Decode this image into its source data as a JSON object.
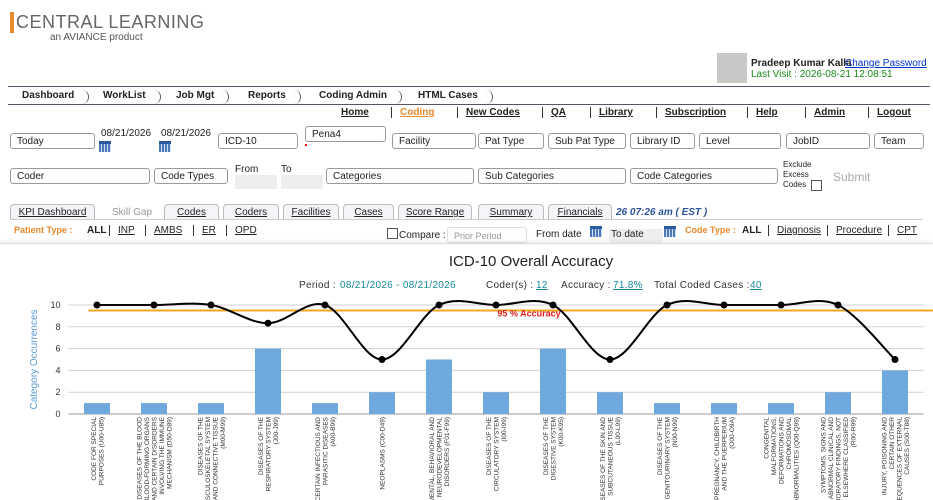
{
  "header": {
    "brand": "CENTRAL LEARNING",
    "tagline": "an AVIANCE product",
    "user": "Pradeep Kumar Kalla",
    "change_password": "Change Password",
    "last_visit": "Last Visit : 2026-08-21 12:08:51"
  },
  "nav": [
    "Dashboard",
    "WorkList",
    "Job Mgt",
    "Reports",
    "Coding Admin",
    "HTML Cases"
  ],
  "menu": [
    "Home",
    "Coding",
    "New Codes",
    "QA",
    "Library",
    "Subscription",
    "Help",
    "Admin",
    "Logout"
  ],
  "filters": {
    "row1": [
      "Today",
      "08/21/2026",
      "08/21/2026",
      "ICD-10",
      "Pena4",
      "Facility",
      "Pat Type",
      "Sub Pat Type",
      "Library ID",
      "Level",
      "JobID",
      "Team"
    ],
    "row2": [
      "Coder",
      "Code Types",
      "From",
      "To",
      "Categories",
      "Sub Categories",
      "Code Categories"
    ],
    "exclude": [
      "Exclude",
      "Excess",
      "Codes"
    ],
    "submit": "Submit"
  },
  "tabs": [
    "KPI Dashboard",
    "Skill Gap",
    "Codes",
    "Coders",
    "Facilities",
    "Cases",
    "Score Range",
    "Summary",
    "Financials"
  ],
  "timestamp": "26 07:26 am ( EST )",
  "patient_type": {
    "label": "Patient Type :",
    "options": [
      "ALL",
      "INP",
      "AMBS",
      "ER",
      "OPD"
    ]
  },
  "compare": {
    "label": "Compare :",
    "prior": "Prior Period",
    "from": "From date",
    "to": "To date"
  },
  "code_type": {
    "label": "Code Type :",
    "options": [
      "ALL",
      "Diagnosis",
      "Procedure",
      "CPT"
    ]
  },
  "summary": {
    "period_label": "Period :",
    "period": "08/21/2026 - 08/21/2026",
    "coders_label": "Coder(s) :",
    "coders": "12",
    "accuracy_label": "Accuracy :",
    "accuracy": "71.8%",
    "total_label": "Total Coded Cases :",
    "total": "40"
  },
  "chart_data": {
    "type": "bar",
    "title": "ICD-10 Overall Accuracy",
    "ylabel": "Category Occurrences",
    "categories": [
      "CODE FOR SPECIAL PURPOSES (U00-U85)",
      "DISEASES OF THE BLOOD AND BLOOD-FORMING ORGANS AND CERTAIN DISORDERS INVOLVING THE IMMUNE MECHANISM (D50-D89)",
      "DISEASES OF THE MUSCULOSKELETAL SYSTEM AND CONNECTIVE TISSUE (M00-M99)",
      "DISEASES OF THE RESPIRATORY SYSTEM (J00-J99)",
      "CERTAIN INFECTIOUS AND PARASITIC DISEASES (A00-B99)",
      "NEOPLASMS (C00-D49)",
      "MENTAL, BEHAVIORAL AND NEURODEVELOPMENTAL DISORDERS (F01-F99)",
      "DISEASES OF THE CIRCULATORY SYSTEM (I00-I99)",
      "DISEASES OF THE DIGESTIVE SYSTEM (K00-K95)",
      "DISEASES OF THE SKIN AND SUBCUTANEOUS TISSUE (L00-L99)",
      "DISEASES OF THE GENITOURINARY SYSTEM (N00-N99)",
      "PREGNANCY, CHILDBIRTH AND THE PUERPERIUM (O00-O9A)",
      "CONGENITAL MALFORMATIONS, DEFORMATIONS AND CHROMOSOMAL ABNORMALITIES (Q00-Q99)",
      "SYMPTOMS, SIGNS AND ABNORMAL CLINICAL AND LABORATORY FINDINGS, NOT ELSEWHERE CLASSIFIED (R00-R99)",
      "INJURY, POISONING AND CERTAIN OTHER CONSEQUENCES OF EXTERNAL CAUSES (S00-T88)"
    ],
    "series": [
      {
        "type": "bar",
        "color": "#6fa8dc",
        "values": [
          1,
          1,
          1,
          6,
          1,
          2,
          5,
          2,
          6,
          2,
          1,
          1,
          1,
          2,
          4
        ]
      },
      {
        "type": "line",
        "axis": "y2",
        "color": "#000000",
        "values": [
          100,
          100,
          100,
          83.3,
          100,
          50,
          100,
          100,
          100,
          50,
          100,
          100,
          100,
          100,
          50
        ]
      }
    ],
    "ylim": [
      0,
      10
    ],
    "yticks": [
      0,
      2,
      4,
      6,
      8,
      10
    ],
    "y2lim": [
      0,
      100
    ],
    "grid": true,
    "threshold": {
      "value": 95,
      "label": "95 % Accuracy",
      "axis": "y2",
      "color": "#f5a623"
    }
  }
}
